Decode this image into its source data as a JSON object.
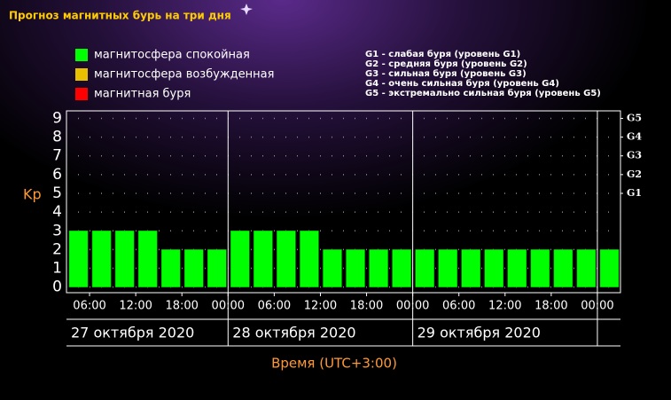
{
  "chart_data": {
    "type": "bar",
    "title": "Прогноз магнитных бурь на три дня",
    "y_label": "Kp",
    "x_label": "Время (UTC+3:00)",
    "legend": [
      {
        "name": "магнитосфера спокойная",
        "color": "#00ff00"
      },
      {
        "name": "магнитосфера возбужденная",
        "color": "#e8c000"
      },
      {
        "name": "магнитная буря",
        "color": "#ff0000"
      }
    ],
    "g_scale_notes": [
      "G1 - слабая буря (уровень G1)",
      "G2 - средняя буря (уровень G2)",
      "G3 - сильная буря (уровень G3)",
      "G4 - очень сильная буря (уровень G4)",
      "G5 - экстремально сильная буря (уровень G5)"
    ],
    "categories": [
      null,
      null,
      null,
      null,
      null,
      null,
      null,
      null,
      null,
      null,
      null,
      null,
      null,
      null,
      null,
      null,
      null,
      null,
      null,
      null,
      null,
      null,
      null,
      null
    ],
    "values": [
      3,
      3,
      3,
      3,
      2,
      2,
      2,
      3,
      3,
      3,
      3,
      2,
      2,
      2,
      2,
      2,
      2,
      2,
      2,
      2,
      2,
      2,
      2,
      2
    ],
    "color": "#00ff00",
    "ylim": [
      -0.3,
      9.4
    ],
    "yticks": [
      0,
      1,
      2,
      3,
      4,
      5,
      6,
      7,
      8,
      9
    ],
    "y2ticks": [
      {
        "value": 5,
        "label": "G1"
      },
      {
        "value": 6,
        "label": "G2"
      },
      {
        "value": 7,
        "label": "G3"
      },
      {
        "value": 8,
        "label": "G4"
      },
      {
        "value": 9,
        "label": "G5"
      }
    ],
    "time_labels": [
      "06:00",
      "12:00",
      "18:00",
      "00:00",
      "06:00",
      "12:00",
      "18:00",
      "00:00",
      "06:00",
      "12:00",
      "18:00",
      "00:00"
    ],
    "dates": [
      "27 октября 2020",
      "28 октября 2020",
      "29 октября 2020"
    ],
    "grid": true
  }
}
